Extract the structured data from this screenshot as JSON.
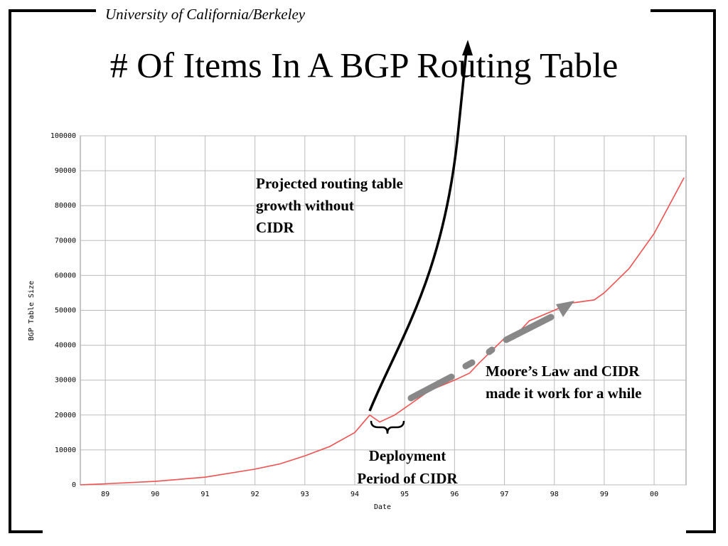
{
  "header": "University of California/Berkeley",
  "chart_data": {
    "type": "line",
    "title": "# Of Items In A BGP Routing Table",
    "x_label": "Date",
    "y_label": "BGP Table Size",
    "x": [
      1988.5,
      1989,
      1990,
      1991,
      1992,
      1992.5,
      1993,
      1993.5,
      1994,
      1994.3,
      1994.5,
      1994.8,
      1995,
      1995.5,
      1996,
      1996.3,
      1996.5,
      1997,
      1997.3,
      1997.5,
      1998,
      1998.3,
      1998.8,
      1999,
      1999.5,
      2000,
      2000.3,
      2000.6
    ],
    "values": [
      0,
      300,
      1000,
      2200,
      4500,
      6000,
      8300,
      11000,
      15000,
      20000,
      18000,
      20000,
      22000,
      27000,
      30000,
      32000,
      35000,
      42000,
      44000,
      47000,
      50000,
      52000,
      53000,
      55000,
      62000,
      72000,
      80000,
      88000
    ],
    "color": "#f05050",
    "xlim": [
      1988.5,
      2000.64
    ],
    "xticks": [
      {
        "value": 1989,
        "label": "89"
      },
      {
        "value": 1990,
        "label": "90"
      },
      {
        "value": 1991,
        "label": "91"
      },
      {
        "value": 1992,
        "label": "92"
      },
      {
        "value": 1993,
        "label": "93"
      },
      {
        "value": 1994,
        "label": "94"
      },
      {
        "value": 1995,
        "label": "95"
      },
      {
        "value": 1996,
        "label": "96"
      },
      {
        "value": 1997,
        "label": "97"
      },
      {
        "value": 1998,
        "label": "98"
      },
      {
        "value": 1999,
        "label": "99"
      },
      {
        "value": 2000,
        "label": "00"
      }
    ],
    "ylim": [
      0,
      100000
    ],
    "yticks": [
      0,
      10000,
      20000,
      30000,
      40000,
      50000,
      60000,
      70000,
      80000,
      90000,
      100000
    ],
    "grid": true,
    "annotations": [
      {
        "lines": [
          "Projected routing table",
          "growth without",
          "CIDR"
        ]
      },
      {
        "lines": [
          "Moore’s Law and CIDR",
          "made it work for a while"
        ]
      },
      {
        "lines": [
          "Deployment",
          "Period of CIDR"
        ]
      }
    ]
  }
}
